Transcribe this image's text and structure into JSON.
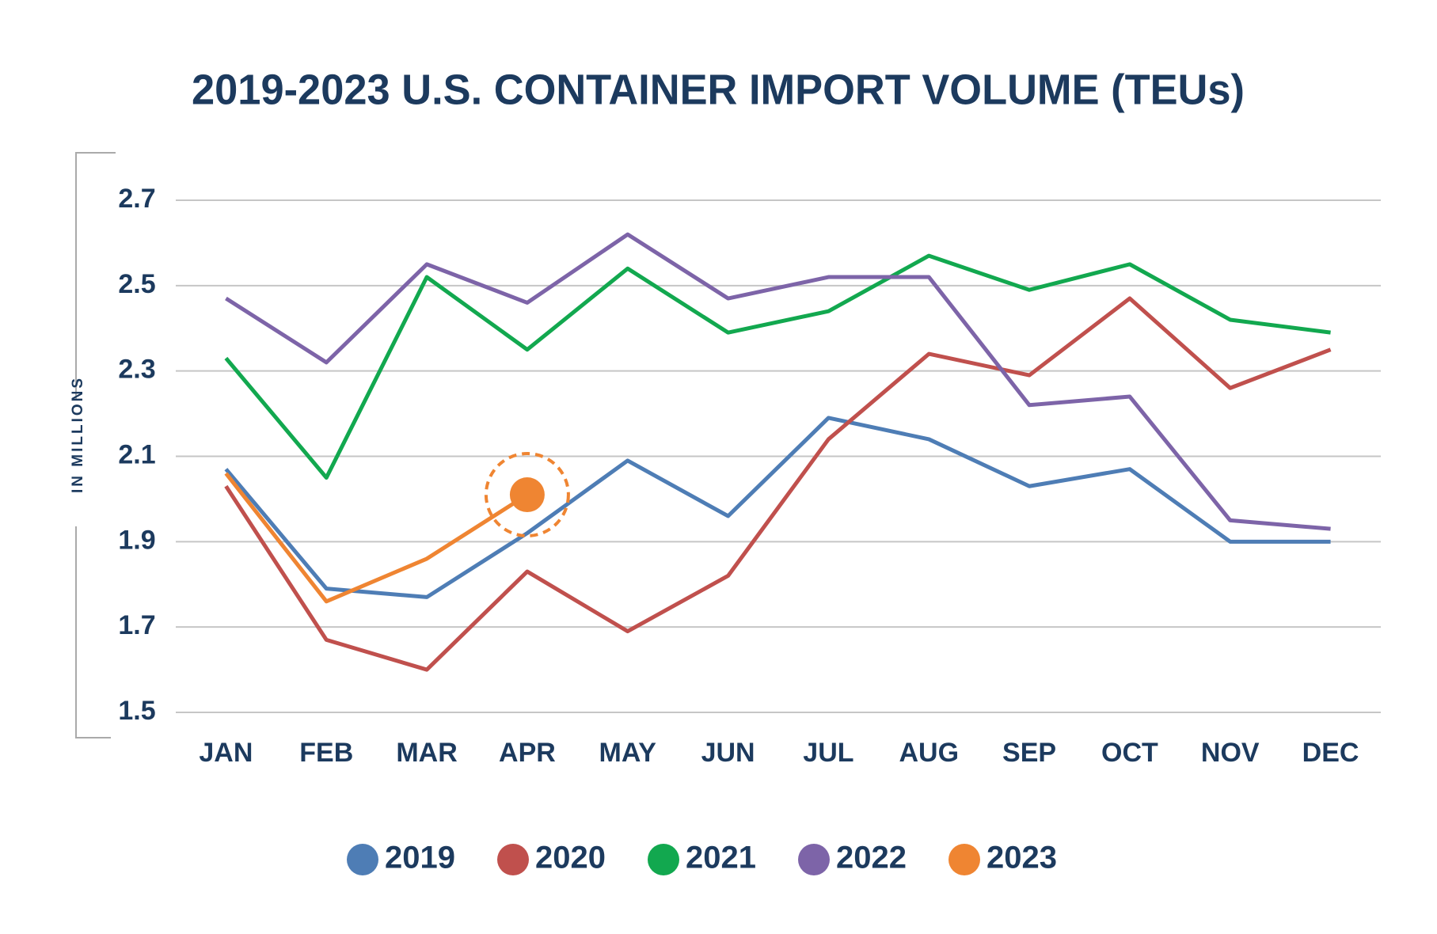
{
  "chart_data": {
    "type": "line",
    "title": "2019-2023 U.S. CONTAINER IMPORT VOLUME (TEUs)",
    "y_label": "IN MILLIONS",
    "categories": [
      "JAN",
      "FEB",
      "MAR",
      "APR",
      "MAY",
      "JUN",
      "JUL",
      "AUG",
      "SEP",
      "OCT",
      "NOV",
      "DEC"
    ],
    "series": [
      {
        "name": "2019",
        "color": "#4e7db5",
        "values": [
          2.07,
          1.79,
          1.77,
          1.92,
          2.09,
          1.96,
          2.19,
          2.14,
          2.03,
          2.07,
          1.9,
          1.9
        ]
      },
      {
        "name": "2020",
        "color": "#c0504d",
        "values": [
          2.03,
          1.67,
          1.6,
          1.83,
          1.69,
          1.82,
          2.14,
          2.34,
          2.29,
          2.47,
          2.26,
          2.35
        ]
      },
      {
        "name": "2021",
        "color": "#12a84f",
        "values": [
          2.33,
          2.05,
          2.52,
          2.35,
          2.54,
          2.39,
          2.44,
          2.57,
          2.49,
          2.55,
          2.42,
          2.39
        ]
      },
      {
        "name": "2022",
        "color": "#7d64a8",
        "values": [
          2.47,
          2.32,
          2.55,
          2.46,
          2.62,
          2.47,
          2.52,
          2.52,
          2.22,
          2.24,
          1.95,
          1.93
        ]
      },
      {
        "name": "2023",
        "color": "#ef8532",
        "values": [
          2.06,
          1.76,
          1.86,
          2.01,
          null,
          null,
          null,
          null,
          null,
          null,
          null,
          null
        ]
      }
    ],
    "ylim": [
      1.5,
      2.7
    ],
    "yticks": [
      1.5,
      1.7,
      1.9,
      2.1,
      2.3,
      2.5,
      2.7
    ],
    "grid": true
  }
}
